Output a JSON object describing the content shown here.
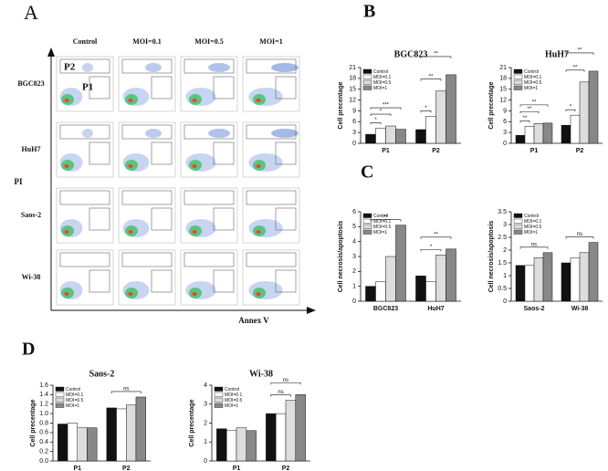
{
  "panel_labels": [
    "A",
    "B",
    "C",
    "D"
  ],
  "panel_a": {
    "columns": [
      "Control",
      "MOI=0.1",
      "MOI=0.5",
      "MOI=1"
    ],
    "rows": [
      "BGC823",
      "HuH7",
      "Saos-2",
      "Wi-38"
    ],
    "gate_labels": [
      "P2",
      "P1"
    ],
    "x_label": "Annex V",
    "y_label": "PI"
  },
  "chart_data": [
    {
      "type": "bar",
      "title": "BGC823",
      "y_label": "Cell precentage",
      "categories": [
        "P1",
        "P2"
      ],
      "series": [
        {
          "name": "Control",
          "color": "#111111",
          "values": [
            2.5,
            3.8
          ]
        },
        {
          "name": "MOI=0.1",
          "color": "#ffffff",
          "values": [
            4.2,
            7.5
          ]
        },
        {
          "name": "MOI=0.5",
          "color": "#dddddd",
          "values": [
            4.8,
            14.5
          ]
        },
        {
          "name": "MOI=1",
          "color": "#888888",
          "values": [
            3.9,
            19
          ]
        }
      ],
      "ylim": [
        0,
        21
      ],
      "yticks": [
        0,
        3,
        6,
        9,
        12,
        15,
        18,
        21
      ],
      "annotations": [
        "*",
        "*",
        "***",
        "*",
        "**",
        "**"
      ]
    },
    {
      "type": "bar",
      "title": "HuH7",
      "y_label": "Cell precentage",
      "categories": [
        "P1",
        "P2"
      ],
      "series": [
        {
          "name": "Control",
          "color": "#111111",
          "values": [
            2.2,
            5.0
          ]
        },
        {
          "name": "MOI=0.1",
          "color": "#ffffff",
          "values": [
            4.7,
            7.8
          ]
        },
        {
          "name": "MOI=0.5",
          "color": "#dddddd",
          "values": [
            5.5,
            17
          ]
        },
        {
          "name": "MOI=1",
          "color": "#888888",
          "values": [
            5.6,
            20
          ]
        }
      ],
      "ylim": [
        0,
        21
      ],
      "yticks": [
        0,
        3,
        6,
        9,
        12,
        15,
        18,
        21
      ],
      "annotations": [
        "**",
        "**",
        "**",
        "*",
        "**",
        "**"
      ]
    },
    {
      "type": "bar",
      "y_label": "Cell necrosis/apoptosis",
      "categories": [
        "BGC823",
        "HuH7"
      ],
      "series": [
        {
          "name": "Control",
          "color": "#111111",
          "values": [
            1.0,
            1.7
          ]
        },
        {
          "name": "MOI=0.1",
          "color": "#ffffff",
          "values": [
            1.3,
            1.3
          ]
        },
        {
          "name": "MOI=0.5",
          "color": "#dddddd",
          "values": [
            3.0,
            3.1
          ]
        },
        {
          "name": "MOI=1",
          "color": "#888888",
          "values": [
            5.1,
            3.5
          ]
        }
      ],
      "ylim": [
        0,
        6
      ],
      "yticks": [
        0,
        1,
        2,
        3,
        4,
        5,
        6
      ],
      "annotations": [
        "**",
        "*",
        "**"
      ]
    },
    {
      "type": "bar",
      "y_label": "Cell necrosis/apoptosis",
      "categories": [
        "Saos-2",
        "Wi-38"
      ],
      "series": [
        {
          "name": "Control",
          "color": "#111111",
          "values": [
            1.4,
            1.5
          ]
        },
        {
          "name": "MOI=0.1",
          "color": "#ffffff",
          "values": [
            1.4,
            1.7
          ]
        },
        {
          "name": "MOI=0.5",
          "color": "#dddddd",
          "values": [
            1.7,
            1.9
          ]
        },
        {
          "name": "MOI=1",
          "color": "#888888",
          "values": [
            1.9,
            2.3
          ]
        }
      ],
      "ylim": [
        0,
        3.5
      ],
      "yticks": [
        0,
        0.5,
        1,
        1.5,
        2,
        2.5,
        3,
        3.5
      ],
      "annotations": [
        "ns",
        "ns"
      ]
    },
    {
      "type": "bar",
      "title": "Saos-2",
      "y_label": "Cell precentage",
      "categories": [
        "P1",
        "P2"
      ],
      "series": [
        {
          "name": "Control",
          "color": "#111111",
          "values": [
            0.78,
            1.12
          ]
        },
        {
          "name": "MOI=0.1",
          "color": "#ffffff",
          "values": [
            0.8,
            1.1
          ]
        },
        {
          "name": "MOI=0.5",
          "color": "#dddddd",
          "values": [
            0.7,
            1.18
          ]
        },
        {
          "name": "MOI=1",
          "color": "#888888",
          "values": [
            0.7,
            1.35
          ]
        }
      ],
      "ylim": [
        0,
        1.6
      ],
      "yticks": [
        {
          "value": 0,
          "label": "0.0"
        },
        0.2,
        0.4,
        0.6,
        0.8,
        {
          "value": 1,
          "label": "1.0"
        },
        1.2,
        1.4,
        1.6
      ],
      "annotations": [
        "ns"
      ]
    },
    {
      "type": "bar",
      "title": "Wi-38",
      "y_label": "Cell precentage",
      "categories": [
        "P1",
        "P2"
      ],
      "series": [
        {
          "name": "Control",
          "color": "#111111",
          "values": [
            1.7,
            2.5
          ]
        },
        {
          "name": "MOI=0.1",
          "color": "#ffffff",
          "values": [
            1.6,
            2.5
          ]
        },
        {
          "name": "MOI=0.5",
          "color": "#dddddd",
          "values": [
            1.75,
            3.2
          ]
        },
        {
          "name": "MOI=1",
          "color": "#888888",
          "values": [
            1.6,
            3.5
          ]
        }
      ],
      "ylim": [
        0,
        4
      ],
      "yticks": [
        0,
        1,
        2,
        3,
        4
      ],
      "annotations": [
        "ns",
        "ns"
      ]
    }
  ]
}
